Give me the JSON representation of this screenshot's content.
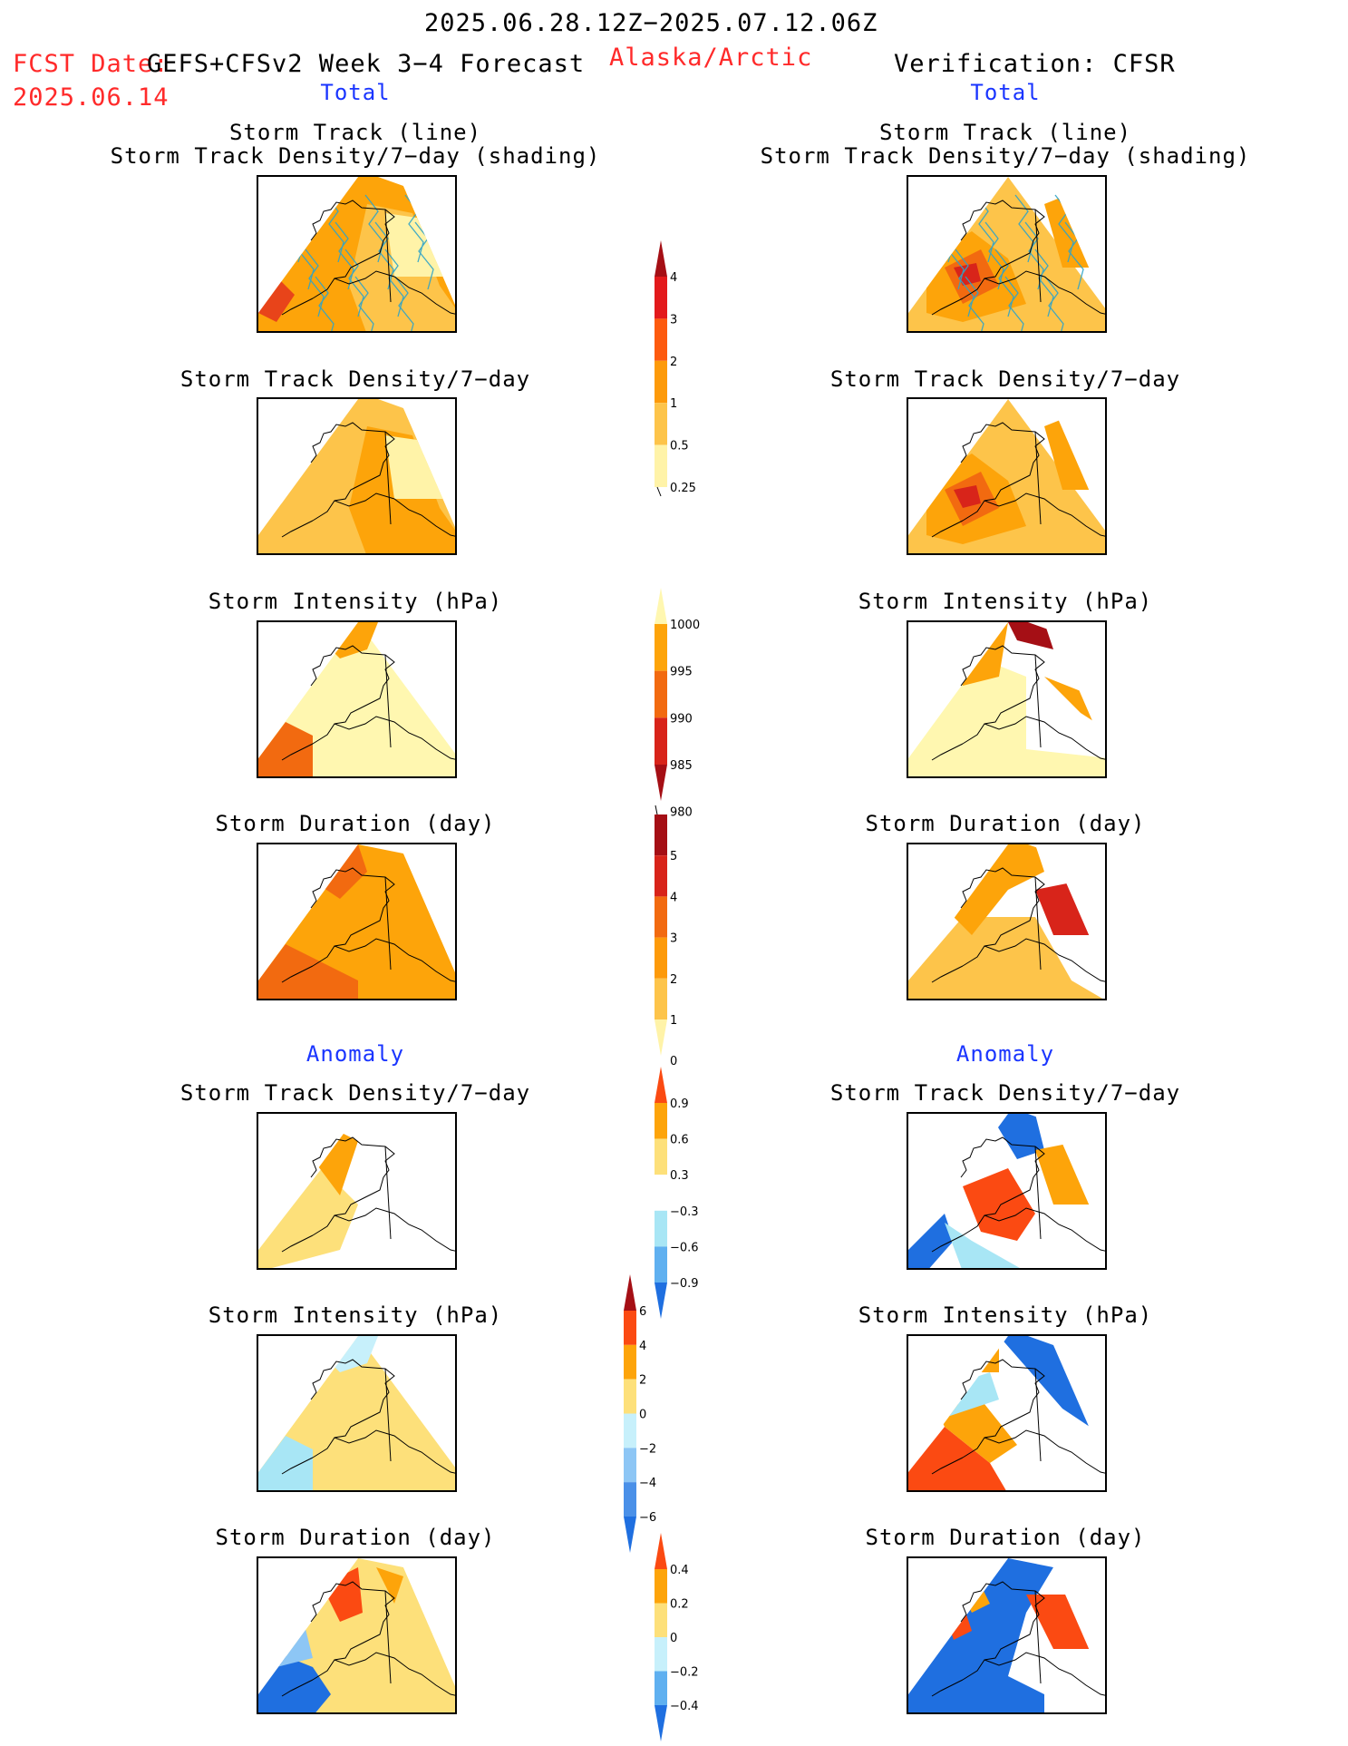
{
  "header": {
    "date_range": "2025.06.28.12Z−2025.07.12.06Z",
    "fcst_label": "FCST Date:",
    "fcst_model": "GEFS+CFSv2 Week 3−4 Forecast",
    "fcst_date": "2025.06.14",
    "region": "Alaska/Arctic",
    "verification": "Verification: CFSR"
  },
  "sections": {
    "total": "Total",
    "anomaly": "Anomaly"
  },
  "panel_titles": {
    "storm_track_line": "Storm Track (line)",
    "storm_track_shading": "Storm Track Density/7−day (shading)",
    "storm_track_density": "Storm Track Density/7−day",
    "storm_intensity": "Storm Intensity (hPa)",
    "storm_duration": "Storm Duration (day)"
  },
  "colorbars": {
    "density": {
      "labels": [
        "4",
        "3",
        "2",
        "1",
        "0.5",
        "0.25"
      ],
      "colors": [
        "#a50f15",
        "#e31a1c",
        "#fd5a0e",
        "#fd9a0a",
        "#fdc44a",
        "#fff3a8"
      ]
    },
    "intensity": {
      "labels": [
        "1000",
        "995",
        "990",
        "985",
        "980"
      ],
      "colors": [
        "#fff7b0",
        "#fda40a",
        "#f26a10",
        "#d8241a",
        "#a50f15"
      ]
    },
    "duration": {
      "labels": [
        "5",
        "4",
        "3",
        "2",
        "1",
        "0"
      ],
      "colors": [
        "#a50f15",
        "#d8241a",
        "#f26a10",
        "#fd9a0a",
        "#fdc44a",
        "#fff3a8"
      ]
    },
    "anom_density": {
      "labels": [
        "0.9",
        "0.6",
        "0.3",
        "−0.3",
        "−0.6",
        "−0.9"
      ],
      "colors": [
        "#fb4a12",
        "#fda40a",
        "#fde07a",
        "#ffffff",
        "#a8e6f5",
        "#5fb0f0",
        "#1f6fe0"
      ]
    },
    "anom_intensity": {
      "labels": [
        "6",
        "4",
        "2",
        "0",
        "−2",
        "−4",
        "−6"
      ],
      "colors": [
        "#a50f15",
        "#fb4a12",
        "#fda40a",
        "#fde07a",
        "#c7f0fb",
        "#8dc6f5",
        "#4a90e8",
        "#1f6fe0"
      ]
    },
    "anom_duration": {
      "labels": [
        "0.4",
        "0.2",
        "0",
        "−0.2",
        "−0.4"
      ],
      "colors": [
        "#fb4a12",
        "#fda40a",
        "#fde07a",
        "#c7f0fb",
        "#5fb0f0",
        "#1f6fe0"
      ]
    }
  },
  "maps": {
    "fc_track": {
      "colors": [
        "#fda40a",
        "#fdc44a",
        "#fff3a8",
        "#e8441a"
      ],
      "storm_tracks": true
    },
    "ob_track": {
      "colors": [
        "#fdc44a",
        "#fda40a",
        "#f26a10",
        "#d8241a"
      ],
      "storm_tracks": true
    },
    "fc_density": {
      "colors": [
        "#fdc44a",
        "#fda40a",
        "#fff3a8"
      ]
    },
    "ob_density": {
      "colors": [
        "#fdc44a",
        "#fda40a",
        "#f26a10",
        "#d8241a"
      ]
    },
    "fc_intensity": {
      "colors": [
        "#fff7b0",
        "#fda40a",
        "#f26a10"
      ]
    },
    "ob_intensity": {
      "colors": [
        "#fff7b0",
        "#fda40a",
        "#a50f15"
      ]
    },
    "fc_duration": {
      "colors": [
        "#fda40a",
        "#f26a10"
      ]
    },
    "ob_duration": {
      "colors": [
        "#fdc44a",
        "#fda40a",
        "#d8241a"
      ]
    },
    "fa_density": {
      "colors": [
        "#fde07a",
        "#fda40a"
      ]
    },
    "oa_density": {
      "colors": [
        "#1f6fe0",
        "#fb4a12",
        "#a8e6f5",
        "#fda40a"
      ]
    },
    "fa_intensity": {
      "colors": [
        "#fde07a",
        "#c7f0fb",
        "#a8e6f5"
      ]
    },
    "oa_intensity": {
      "colors": [
        "#fb4a12",
        "#fda40a",
        "#1f6fe0",
        "#a8e6f5"
      ]
    },
    "fa_duration": {
      "colors": [
        "#fde07a",
        "#fb4a12",
        "#1f6fe0",
        "#8dc6f5",
        "#fda40a"
      ]
    },
    "oa_duration": {
      "colors": [
        "#1f6fe0",
        "#fb4a12",
        "#fda40a"
      ]
    }
  }
}
